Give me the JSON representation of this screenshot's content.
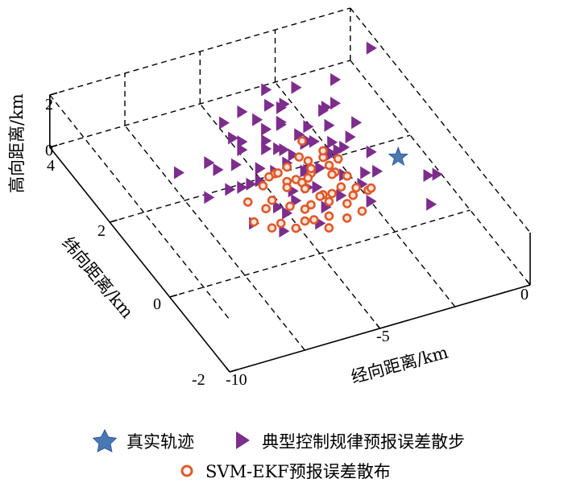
{
  "chart_data": {
    "type": "scatter",
    "dimensions": "3d",
    "xlabel": "经向距离/km",
    "ylabel": "纬向距离/km",
    "zlabel": "高向距离/km",
    "xlim": [
      -10,
      0
    ],
    "ylim": [
      -2,
      4
    ],
    "zlim": [
      0,
      2
    ],
    "xticks": [
      "-10",
      "-5",
      "0"
    ],
    "yticks": [
      "-2",
      "0",
      "2",
      "4"
    ],
    "zticks": [
      "0",
      "2"
    ],
    "grid": true,
    "legend_position": "bottom",
    "series": [
      {
        "name": "真实轨迹",
        "marker": "star",
        "color": "#4a78b5",
        "points": [
          [
            -0.8,
            1.6,
            0
          ]
        ]
      },
      {
        "name": "典型控制规律预报误差散步",
        "marker": "triangle-right",
        "color": "#7d2d8c",
        "points": [
          [
            -7.4,
            2.3,
            0.6
          ],
          [
            -4.9,
            1.9,
            2.0
          ],
          [
            -4.1,
            2.7,
            2.1
          ],
          [
            -1.9,
            2.6,
            1.9
          ],
          [
            -2.3,
            2.2,
            1.7
          ],
          [
            -4.5,
            1.4,
            1.6
          ],
          [
            -3.4,
            1.3,
            1.5
          ],
          [
            -6.1,
            1.2,
            1.3
          ],
          [
            -2.6,
            2.1,
            1.1
          ],
          [
            -5.5,
            2.7,
            1.3
          ],
          [
            -4.0,
            2.3,
            1.4
          ],
          [
            -3.7,
            1.8,
            1.2
          ],
          [
            -5.0,
            1.5,
            1.0
          ],
          [
            -4.7,
            2.1,
            0.9
          ],
          [
            -3.3,
            1.9,
            1.0
          ],
          [
            -2.9,
            1.5,
            1.1
          ],
          [
            -5.8,
            2.0,
            0.8
          ],
          [
            -6.5,
            1.5,
            0.8
          ],
          [
            -4.4,
            1.0,
            0.9
          ],
          [
            -3.1,
            1.1,
            0.8
          ],
          [
            -2.5,
            1.7,
            0.8
          ],
          [
            -4.2,
            2.9,
            0.7
          ],
          [
            -5.2,
            2.4,
            0.6
          ],
          [
            -3.6,
            2.7,
            0.6
          ],
          [
            -4.9,
            0.9,
            0.7
          ],
          [
            -3.9,
            1.6,
            0.5
          ],
          [
            -2.8,
            2.6,
            0.4
          ],
          [
            -5.9,
            1.7,
            0.4
          ],
          [
            -4.6,
            1.3,
            0.4
          ],
          [
            -3.4,
            0.9,
            0.4
          ],
          [
            -6.3,
            0.9,
            0.3
          ],
          [
            -5.3,
            1.1,
            0.3
          ],
          [
            -2.2,
            1.3,
            0.3
          ],
          [
            -4.1,
            2.0,
            0.3
          ],
          [
            -1.7,
            1.6,
            0.5
          ],
          [
            -3.0,
            2.4,
            0.2
          ],
          [
            -4.8,
            2.8,
            0.2
          ],
          [
            -5.6,
            0.6,
            0.2
          ],
          [
            -3.7,
            1.4,
            0.1
          ],
          [
            -2.6,
            0.7,
            0.2
          ],
          [
            -4.4,
            0.6,
            0.1
          ],
          [
            -6.0,
            2.4,
            0.1
          ],
          [
            -3.2,
            1.8,
            0.1
          ],
          [
            -1.3,
            2.5,
            0.2
          ],
          [
            -5.1,
            1.9,
            0.1
          ],
          [
            -2.1,
            2.8,
            0.5
          ],
          [
            -4.3,
            2.5,
            0.5
          ],
          [
            -3.5,
            2.2,
            0.9
          ],
          [
            -5.4,
            1.6,
            1.1
          ],
          [
            -2.7,
            0.9,
            0.6
          ],
          [
            -4.6,
            1.8,
            1.3
          ],
          [
            -3.8,
            2.5,
            1.6
          ],
          [
            -5.7,
            2.2,
            1.5
          ],
          [
            -3.0,
            1.6,
            1.3
          ],
          [
            -4.2,
            1.2,
            1.2
          ],
          [
            -2.4,
            2.4,
            1.3
          ],
          [
            -5.0,
            2.6,
            1.7
          ],
          [
            -3.6,
            1.1,
            1.7
          ],
          [
            -4.8,
            1.4,
            1.9
          ],
          [
            -2.0,
            2.0,
            0.6
          ],
          [
            -6.6,
            2.1,
            1.0
          ],
          [
            -3.3,
            2.9,
            1.0
          ],
          [
            -1.9,
            1.2,
            0.4
          ],
          [
            -6.9,
            1.8,
            0.2
          ],
          [
            -4.0,
            0.8,
            0.3
          ],
          [
            -3.9,
            2.8,
            1.3
          ],
          [
            -5.3,
            0.8,
            0.5
          ],
          [
            -2.9,
            2.9,
            1.5
          ],
          [
            -0.5,
            0.9,
            0.2
          ],
          [
            -0.4,
            0.7,
            0.5
          ],
          [
            -1.1,
            0.2,
            0.3
          ],
          [
            -0.3,
            3.0,
            2.0
          ]
        ]
      },
      {
        "name": "SVM-EKF预报误差散布",
        "marker": "circle",
        "color": "#de5a2a",
        "points": [
          [
            -3.4,
            1.5,
            1.0
          ],
          [
            -4.2,
            1.3,
            0.4
          ],
          [
            -4.9,
            1.1,
            0.2
          ],
          [
            -3.8,
            0.9,
            0.3
          ],
          [
            -3.1,
            1.2,
            0.2
          ],
          [
            -4.5,
            1.6,
            0.3
          ],
          [
            -3.6,
            1.8,
            0.5
          ],
          [
            -4.0,
            0.7,
            0.1
          ],
          [
            -3.3,
            0.8,
            0.2
          ],
          [
            -2.9,
            1.0,
            0.1
          ],
          [
            -4.7,
            0.8,
            0.0
          ],
          [
            -5.2,
            1.4,
            0.1
          ],
          [
            -4.3,
            1.0,
            0.2
          ],
          [
            -3.7,
            1.2,
            0.1
          ],
          [
            -3.0,
            1.5,
            0.3
          ],
          [
            -2.6,
            1.2,
            0.0
          ],
          [
            -4.1,
            1.7,
            0.1
          ],
          [
            -4.6,
            1.9,
            0.2
          ],
          [
            -3.5,
            0.6,
            0.0
          ],
          [
            -5.4,
            0.9,
            0.0
          ],
          [
            -3.9,
            1.4,
            0.7
          ],
          [
            -4.4,
            1.2,
            0.8
          ],
          [
            -3.2,
            1.7,
            0.9
          ],
          [
            -2.8,
            1.6,
            0.6
          ],
          [
            -5.0,
            1.7,
            0.5
          ],
          [
            -4.8,
            1.3,
            0.6
          ],
          [
            -3.6,
            1.0,
            0.4
          ],
          [
            -4.2,
            0.5,
            0.0
          ],
          [
            -3.0,
            0.6,
            0.1
          ],
          [
            -5.6,
            1.2,
            0.2
          ],
          [
            -2.5,
            0.9,
            0.3
          ],
          [
            -4.0,
            1.5,
            0.0
          ],
          [
            -3.4,
            1.9,
            0.0
          ],
          [
            -4.6,
            0.6,
            0.3
          ],
          [
            -5.1,
            0.7,
            0.0
          ],
          [
            -2.7,
            1.4,
            0.2
          ],
          [
            -3.8,
            1.6,
            0.2
          ],
          [
            -4.5,
            1.0,
            0.1
          ],
          [
            -3.3,
            1.3,
            0.6
          ],
          [
            -4.1,
            0.9,
            0.6
          ],
          [
            -3.7,
            2.0,
            0.4
          ],
          [
            -5.3,
            1.6,
            0.4
          ],
          [
            -2.9,
            1.8,
            0.1
          ],
          [
            -4.9,
            1.5,
            0.9
          ],
          [
            -4.3,
            1.8,
            0.5
          ],
          [
            -2.2,
            1.1,
            0.0
          ],
          [
            -3.5,
            2.1,
            0.8
          ],
          [
            -6.1,
            1.1,
            0.0
          ],
          [
            -5.8,
            0.8,
            0.1
          ],
          [
            -6.0,
            1.4,
            0.3
          ]
        ]
      }
    ]
  },
  "legend": {
    "items": [
      {
        "label": "真实轨迹",
        "marker": "star",
        "color": "#4a78b5"
      },
      {
        "label": "典型控制规律预报误差散步",
        "marker": "triangle-right",
        "color": "#7d2d8c"
      },
      {
        "label": "SVM-EKF预报误差散布",
        "marker": "circle",
        "color": "#de5a2a"
      }
    ]
  }
}
